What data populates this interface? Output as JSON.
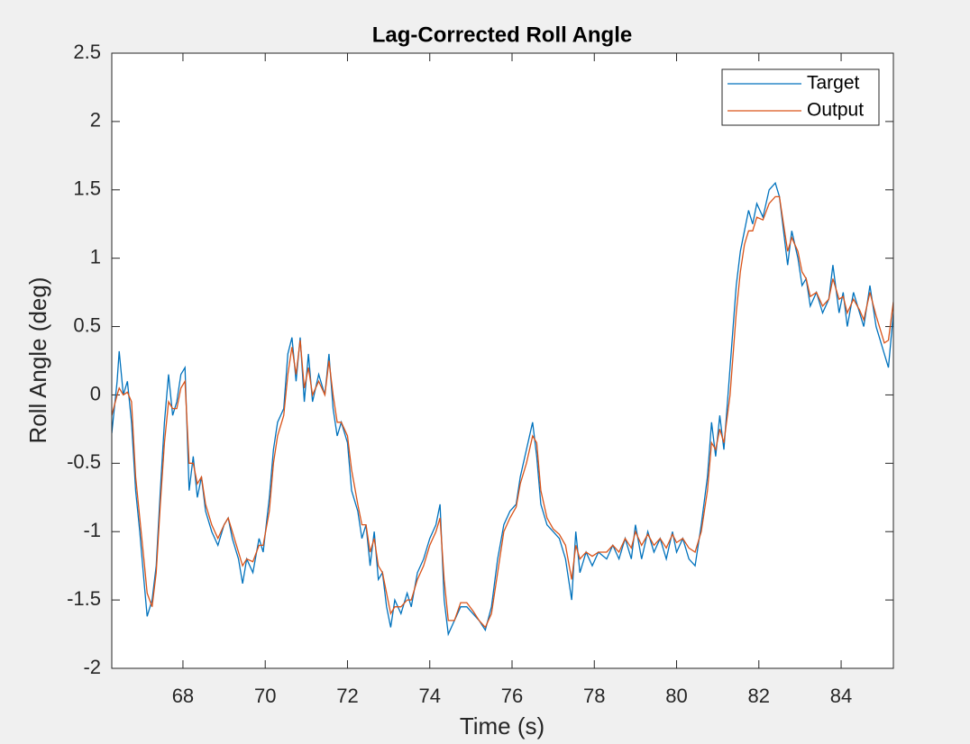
{
  "chart_data": {
    "type": "line",
    "title": "Lag-Corrected Roll Angle",
    "xlabel": "Time (s)",
    "ylabel": "Roll Angle (deg)",
    "xlim": [
      66.27,
      85.27
    ],
    "ylim": [
      -2,
      2.5
    ],
    "xticks": [
      68,
      70,
      72,
      74,
      76,
      78,
      80,
      82,
      84
    ],
    "yticks": [
      -2,
      -1.5,
      -1,
      -0.5,
      0,
      0.5,
      1,
      1.5,
      2,
      2.5
    ],
    "grid": false,
    "legend": "top-right",
    "x": [
      66.27,
      66.4,
      66.45,
      66.55,
      66.65,
      66.75,
      66.85,
      66.95,
      67.05,
      67.13,
      67.25,
      67.35,
      67.45,
      67.55,
      67.65,
      67.75,
      67.85,
      67.95,
      68.05,
      68.15,
      68.25,
      68.35,
      68.45,
      68.55,
      68.7,
      68.85,
      69.0,
      69.1,
      69.2,
      69.35,
      69.45,
      69.55,
      69.7,
      69.85,
      69.95,
      70.1,
      70.2,
      70.3,
      70.45,
      70.55,
      70.65,
      70.75,
      70.85,
      70.95,
      71.05,
      71.15,
      71.3,
      71.45,
      71.55,
      71.65,
      71.75,
      71.85,
      72.0,
      72.1,
      72.25,
      72.35,
      72.45,
      72.55,
      72.65,
      72.75,
      72.85,
      72.95,
      73.05,
      73.15,
      73.3,
      73.45,
      73.55,
      73.7,
      73.85,
      74.0,
      74.15,
      74.25,
      74.35,
      74.45,
      74.6,
      74.75,
      74.9,
      75.05,
      75.2,
      75.35,
      75.5,
      75.65,
      75.8,
      75.95,
      76.1,
      76.2,
      76.35,
      76.5,
      76.6,
      76.7,
      76.85,
      77.0,
      77.15,
      77.3,
      77.45,
      77.55,
      77.65,
      77.8,
      77.95,
      78.1,
      78.3,
      78.45,
      78.6,
      78.75,
      78.9,
      79.0,
      79.15,
      79.3,
      79.45,
      79.6,
      79.75,
      79.9,
      80.0,
      80.15,
      80.3,
      80.45,
      80.6,
      80.75,
      80.85,
      80.95,
      81.05,
      81.15,
      81.3,
      81.45,
      81.55,
      81.65,
      81.75,
      81.85,
      81.95,
      82.1,
      82.25,
      82.4,
      82.5,
      82.6,
      82.7,
      82.8,
      82.95,
      83.05,
      83.15,
      83.25,
      83.4,
      83.55,
      83.7,
      83.8,
      83.95,
      84.05,
      84.15,
      84.3,
      84.45,
      84.55,
      84.7,
      84.85,
      84.95,
      85.05,
      85.15,
      85.27
    ],
    "series": [
      {
        "name": "Target",
        "color": "#0072bd",
        "values": [
          -0.28,
          0.1,
          0.32,
          0.0,
          0.1,
          -0.2,
          -0.7,
          -1.0,
          -1.35,
          -1.62,
          -1.5,
          -1.25,
          -0.7,
          -0.2,
          0.15,
          -0.15,
          -0.05,
          0.15,
          0.2,
          -0.7,
          -0.45,
          -0.75,
          -0.6,
          -0.85,
          -1.0,
          -1.1,
          -0.95,
          -0.9,
          -1.05,
          -1.2,
          -1.38,
          -1.2,
          -1.3,
          -1.05,
          -1.15,
          -0.75,
          -0.4,
          -0.2,
          -0.1,
          0.3,
          0.42,
          0.1,
          0.42,
          -0.05,
          0.3,
          -0.05,
          0.15,
          0.0,
          0.3,
          -0.1,
          -0.3,
          -0.2,
          -0.35,
          -0.7,
          -0.85,
          -1.05,
          -0.95,
          -1.25,
          -1.0,
          -1.35,
          -1.3,
          -1.55,
          -1.7,
          -1.5,
          -1.6,
          -1.45,
          -1.55,
          -1.3,
          -1.2,
          -1.05,
          -0.95,
          -0.8,
          -1.5,
          -1.75,
          -1.65,
          -1.55,
          -1.55,
          -1.6,
          -1.65,
          -1.72,
          -1.55,
          -1.2,
          -0.95,
          -0.85,
          -0.8,
          -0.6,
          -0.4,
          -0.2,
          -0.45,
          -0.8,
          -0.95,
          -1.0,
          -1.05,
          -1.2,
          -1.5,
          -1.0,
          -1.3,
          -1.15,
          -1.25,
          -1.15,
          -1.2,
          -1.1,
          -1.2,
          -1.05,
          -1.2,
          -0.95,
          -1.2,
          -1.0,
          -1.15,
          -1.05,
          -1.2,
          -1.0,
          -1.15,
          -1.05,
          -1.2,
          -1.25,
          -0.95,
          -0.6,
          -0.2,
          -0.45,
          -0.15,
          -0.4,
          0.2,
          0.8,
          1.05,
          1.2,
          1.35,
          1.25,
          1.4,
          1.3,
          1.5,
          1.55,
          1.45,
          1.2,
          0.95,
          1.2,
          1.0,
          0.8,
          0.85,
          0.65,
          0.75,
          0.6,
          0.7,
          0.95,
          0.6,
          0.75,
          0.5,
          0.75,
          0.6,
          0.5,
          0.8,
          0.5,
          0.4,
          0.3,
          0.2,
          0.6
        ]
      },
      {
        "name": "Output",
        "color": "#d95319",
        "values": [
          -0.15,
          0.0,
          0.05,
          0.0,
          0.02,
          -0.05,
          -0.6,
          -0.9,
          -1.2,
          -1.45,
          -1.55,
          -1.3,
          -0.8,
          -0.35,
          -0.05,
          -0.1,
          -0.1,
          0.05,
          0.1,
          -0.5,
          -0.5,
          -0.65,
          -0.6,
          -0.8,
          -0.95,
          -1.05,
          -0.95,
          -0.9,
          -1.0,
          -1.15,
          -1.25,
          -1.2,
          -1.22,
          -1.1,
          -1.1,
          -0.85,
          -0.5,
          -0.3,
          -0.15,
          0.15,
          0.35,
          0.15,
          0.4,
          0.05,
          0.2,
          0.0,
          0.1,
          0.0,
          0.25,
          0.0,
          -0.2,
          -0.2,
          -0.3,
          -0.55,
          -0.8,
          -0.95,
          -0.95,
          -1.15,
          -1.05,
          -1.25,
          -1.3,
          -1.45,
          -1.6,
          -1.55,
          -1.55,
          -1.5,
          -1.5,
          -1.35,
          -1.25,
          -1.1,
          -1.0,
          -0.9,
          -1.35,
          -1.65,
          -1.65,
          -1.52,
          -1.52,
          -1.58,
          -1.65,
          -1.7,
          -1.6,
          -1.3,
          -1.0,
          -0.9,
          -0.82,
          -0.65,
          -0.5,
          -0.3,
          -0.35,
          -0.7,
          -0.9,
          -0.98,
          -1.02,
          -1.1,
          -1.35,
          -1.1,
          -1.2,
          -1.15,
          -1.18,
          -1.15,
          -1.15,
          -1.1,
          -1.15,
          -1.05,
          -1.12,
          -1.0,
          -1.1,
          -1.02,
          -1.1,
          -1.05,
          -1.12,
          -1.02,
          -1.08,
          -1.05,
          -1.12,
          -1.15,
          -1.0,
          -0.7,
          -0.35,
          -0.4,
          -0.25,
          -0.35,
          0.0,
          0.6,
          0.9,
          1.1,
          1.2,
          1.2,
          1.3,
          1.28,
          1.4,
          1.45,
          1.45,
          1.25,
          1.05,
          1.15,
          1.05,
          0.9,
          0.85,
          0.72,
          0.75,
          0.65,
          0.7,
          0.85,
          0.7,
          0.72,
          0.6,
          0.7,
          0.62,
          0.55,
          0.75,
          0.58,
          0.48,
          0.38,
          0.4,
          0.68
        ]
      }
    ]
  }
}
